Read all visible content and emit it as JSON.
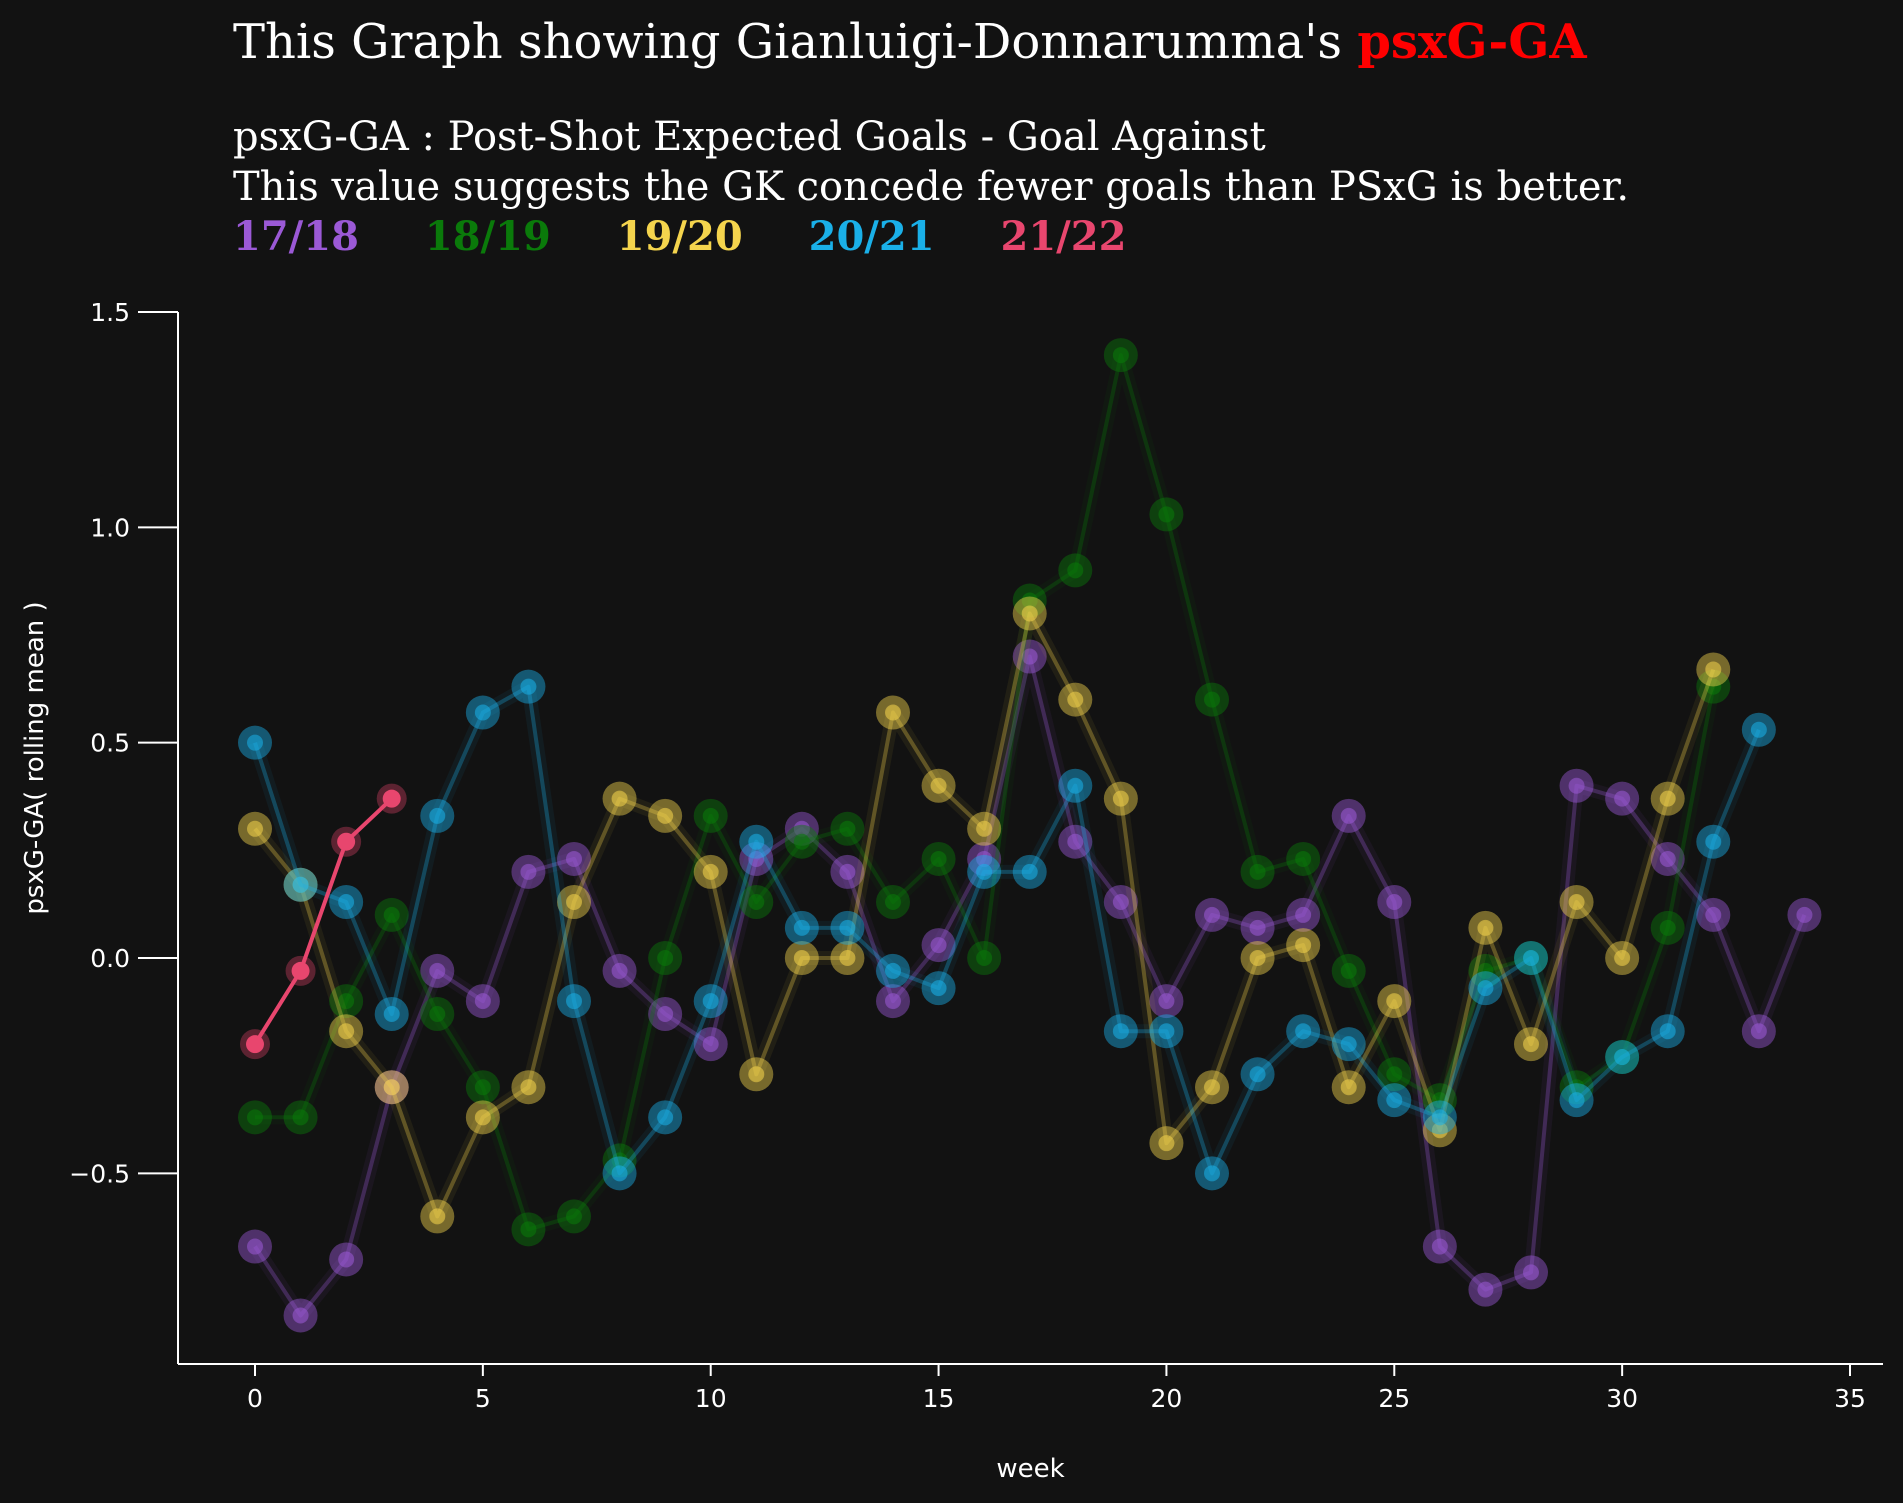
{
  "title": {
    "prefix": "This Graph showing Gianluigi-Donnarumma's",
    "highlight": "psxG-GA",
    "highlight_color": "#ff0000"
  },
  "subtitle_lines": [
    "psxG-GA : Post-Shot Expected Goals - Goal Against",
    "This value suggests the GK concede fewer goals than PSxG is better."
  ],
  "chart_data": {
    "type": "line",
    "xlabel": "week",
    "ylabel": "psxG-GA( rolling mean )",
    "xlim": [
      -1.7,
      35.7
    ],
    "ylim": [
      -0.95,
      1.5
    ],
    "xticks": [
      0,
      5,
      10,
      15,
      20,
      25,
      30,
      35
    ],
    "yticks": [
      1.5,
      1.0,
      0.5,
      0.0,
      -0.5
    ],
    "ytick_labels": [
      "1.5",
      "1.0",
      "0.5",
      "0.0",
      "−0.5"
    ],
    "grid": false,
    "legend_position": "top-left",
    "series": [
      {
        "name": "17/18",
        "color": "#9b59d6",
        "highlight": false,
        "x": [
          0,
          1,
          2,
          3,
          4,
          5,
          6,
          7,
          8,
          9,
          10,
          11,
          12,
          13,
          14,
          15,
          16,
          17,
          18,
          19,
          20,
          21,
          22,
          23,
          24,
          25,
          26,
          27,
          28,
          29,
          30,
          31,
          32,
          33,
          34
        ],
        "y": [
          -0.67,
          -0.83,
          -0.7,
          -0.3,
          -0.03,
          -0.1,
          0.2,
          0.23,
          -0.03,
          -0.13,
          -0.2,
          0.23,
          0.3,
          0.2,
          -0.1,
          0.03,
          0.23,
          0.7,
          0.27,
          0.13,
          -0.1,
          0.1,
          0.07,
          0.1,
          0.33,
          0.13,
          -0.67,
          -0.77,
          -0.73,
          0.4,
          0.37,
          0.23,
          0.1,
          -0.17,
          0.1
        ]
      },
      {
        "name": "18/19",
        "color": "#0a7a0a",
        "highlight": false,
        "x": [
          0,
          1,
          2,
          3,
          4,
          5,
          6,
          7,
          8,
          9,
          10,
          11,
          12,
          13,
          14,
          15,
          16,
          17,
          18,
          19,
          20,
          21,
          22,
          23,
          24,
          25,
          26,
          27,
          28,
          29,
          30,
          31,
          32
        ],
        "y": [
          -0.37,
          -0.37,
          -0.1,
          0.1,
          -0.13,
          -0.3,
          -0.63,
          -0.6,
          -0.47,
          0.0,
          0.33,
          0.13,
          0.27,
          0.3,
          0.13,
          0.23,
          0.0,
          0.83,
          0.9,
          1.4,
          1.03,
          0.6,
          0.2,
          0.23,
          -0.03,
          -0.27,
          -0.33,
          -0.03,
          0.0,
          -0.3,
          -0.23,
          0.07,
          0.63
        ]
      },
      {
        "name": "19/20",
        "color": "#f4d44d",
        "highlight": false,
        "x": [
          0,
          1,
          2,
          3,
          4,
          5,
          6,
          7,
          8,
          9,
          10,
          11,
          12,
          13,
          14,
          15,
          16,
          17,
          18,
          19,
          20,
          21,
          22,
          23,
          24,
          25,
          26,
          27,
          28,
          29,
          30,
          31,
          32
        ],
        "y": [
          0.3,
          0.17,
          -0.17,
          -0.3,
          -0.6,
          -0.37,
          -0.3,
          0.13,
          0.37,
          0.33,
          0.2,
          -0.27,
          0.0,
          0.0,
          0.57,
          0.4,
          0.3,
          0.8,
          0.6,
          0.37,
          -0.43,
          -0.3,
          0.0,
          0.03,
          -0.3,
          -0.1,
          -0.4,
          0.07,
          -0.2,
          0.13,
          0.0,
          0.37,
          0.67
        ]
      },
      {
        "name": "20/21",
        "color": "#1ab0e8",
        "highlight": false,
        "x": [
          0,
          1,
          2,
          3,
          4,
          5,
          6,
          7,
          8,
          9,
          10,
          11,
          12,
          13,
          14,
          15,
          16,
          17,
          18,
          19,
          20,
          21,
          22,
          23,
          24,
          25,
          26,
          27,
          28,
          29,
          30,
          31,
          32,
          33
        ],
        "y": [
          0.5,
          0.17,
          0.13,
          -0.13,
          0.33,
          0.57,
          0.63,
          -0.1,
          -0.5,
          -0.37,
          -0.1,
          0.27,
          0.07,
          0.07,
          -0.03,
          -0.07,
          0.2,
          0.2,
          0.4,
          -0.17,
          -0.17,
          -0.5,
          -0.27,
          -0.17,
          -0.2,
          -0.33,
          -0.37,
          -0.07,
          0.0,
          -0.33,
          -0.23,
          -0.17,
          0.27,
          0.53
        ]
      },
      {
        "name": "21/22",
        "color": "#e8466e",
        "highlight": true,
        "x": [
          0,
          1,
          2,
          3
        ],
        "y": [
          -0.2,
          -0.03,
          0.27,
          0.37
        ]
      }
    ]
  }
}
